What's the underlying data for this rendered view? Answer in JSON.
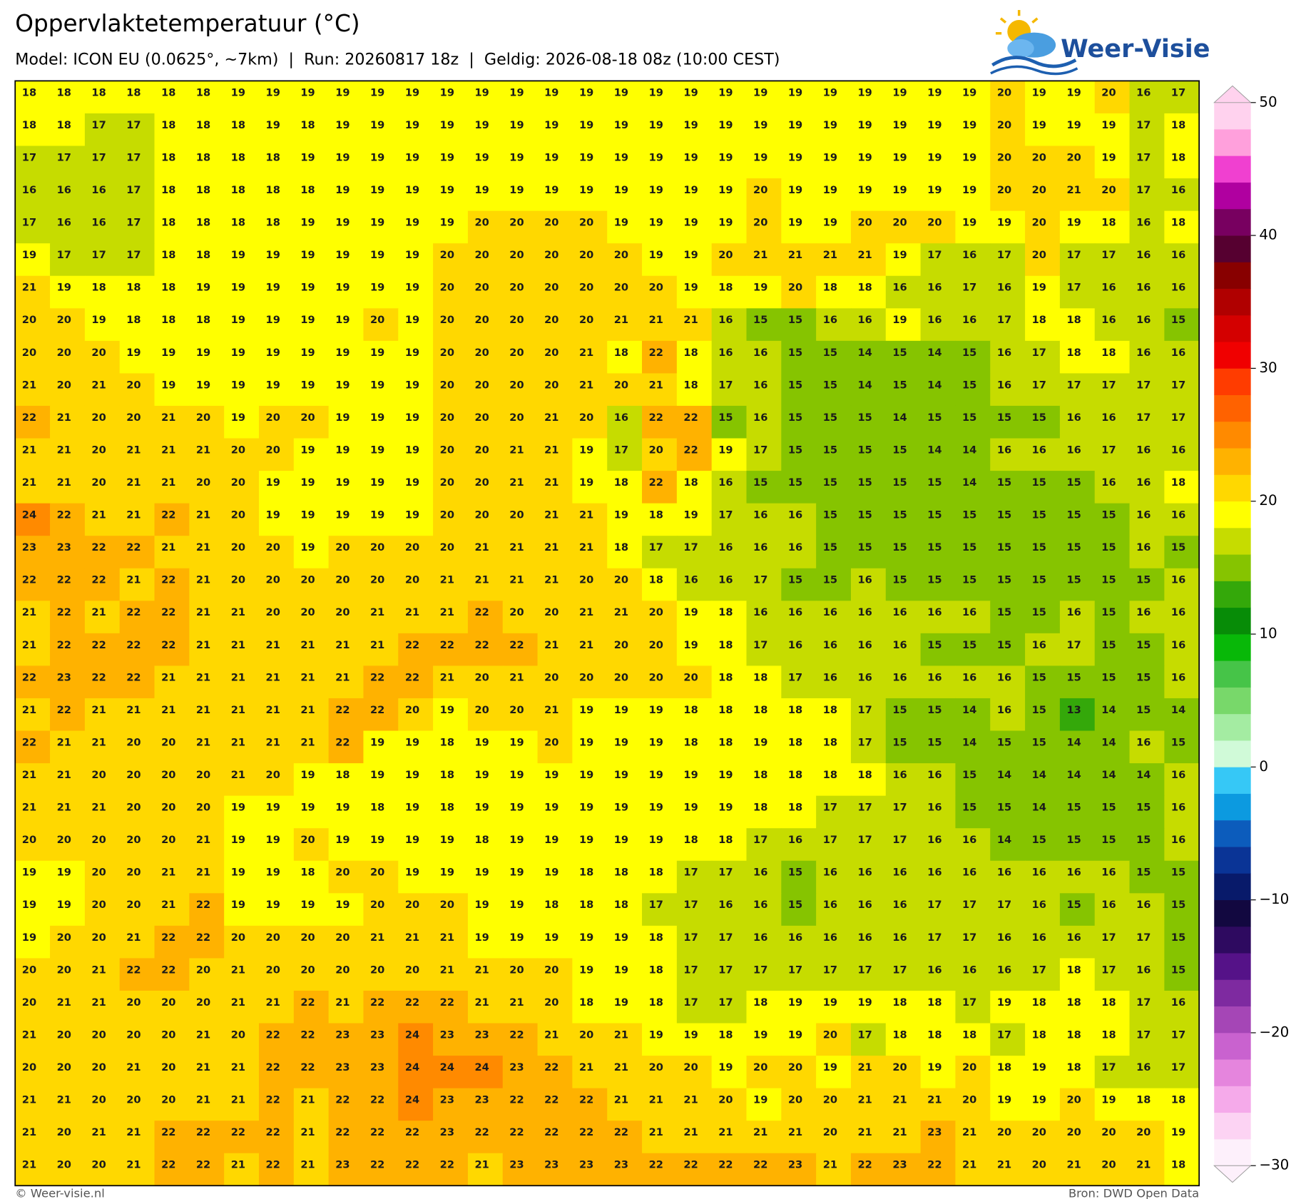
{
  "header": {
    "title": "Oppervlaktetemperatuur (°C)",
    "subtitle": "Model: ICON EU (0.0625°, ~7km)  |  Run: 20260817 18z  |  Geldig: 2026-08-18 08z (10:00 CEST)"
  },
  "logo": {
    "text": "Weer-Visie"
  },
  "map": {
    "values": [
      [
        18,
        18,
        18,
        18,
        18,
        18,
        19,
        19,
        19,
        19,
        19,
        19,
        19,
        19,
        19,
        19,
        19,
        19,
        19,
        19,
        19,
        19,
        19,
        19,
        19,
        19,
        19,
        19,
        20,
        19,
        19,
        20,
        16,
        17
      ],
      [
        18,
        18,
        17,
        17,
        18,
        18,
        18,
        19,
        18,
        19,
        19,
        19,
        19,
        19,
        19,
        19,
        19,
        19,
        19,
        19,
        19,
        19,
        19,
        19,
        19,
        19,
        19,
        19,
        20,
        19,
        19,
        19,
        17,
        18
      ],
      [
        17,
        17,
        17,
        17,
        18,
        18,
        18,
        18,
        19,
        19,
        19,
        19,
        19,
        19,
        19,
        19,
        19,
        19,
        19,
        19,
        19,
        19,
        19,
        19,
        19,
        19,
        19,
        19,
        20,
        20,
        20,
        19,
        17,
        18
      ],
      [
        16,
        16,
        16,
        17,
        18,
        18,
        18,
        18,
        18,
        19,
        19,
        19,
        19,
        19,
        19,
        19,
        19,
        19,
        19,
        19,
        19,
        20,
        19,
        19,
        19,
        19,
        19,
        19,
        20,
        20,
        21,
        20,
        17,
        16
      ],
      [
        17,
        16,
        16,
        17,
        18,
        18,
        18,
        18,
        19,
        19,
        19,
        19,
        19,
        20,
        20,
        20,
        20,
        19,
        19,
        19,
        19,
        20,
        19,
        19,
        20,
        20,
        20,
        19,
        19,
        20,
        19,
        18,
        16,
        18
      ],
      [
        19,
        17,
        17,
        17,
        18,
        18,
        19,
        19,
        19,
        19,
        19,
        19,
        20,
        20,
        20,
        20,
        20,
        20,
        19,
        19,
        20,
        21,
        21,
        21,
        21,
        19,
        17,
        16,
        17,
        20,
        17,
        17,
        16,
        16
      ],
      [
        21,
        19,
        18,
        18,
        18,
        19,
        19,
        19,
        19,
        19,
        19,
        19,
        20,
        20,
        20,
        20,
        20,
        20,
        20,
        19,
        18,
        19,
        20,
        18,
        18,
        16,
        16,
        17,
        16,
        19,
        17,
        16,
        16,
        16
      ],
      [
        20,
        20,
        19,
        18,
        18,
        18,
        19,
        19,
        19,
        19,
        20,
        19,
        20,
        20,
        20,
        20,
        20,
        21,
        21,
        21,
        16,
        15,
        15,
        16,
        16,
        19,
        16,
        16,
        17,
        18,
        18,
        16,
        16,
        15
      ],
      [
        20,
        20,
        20,
        19,
        19,
        19,
        19,
        19,
        19,
        19,
        19,
        19,
        20,
        20,
        20,
        20,
        21,
        18,
        22,
        18,
        16,
        16,
        15,
        15,
        14,
        15,
        14,
        15,
        16,
        17,
        18,
        18,
        16,
        16
      ],
      [
        21,
        20,
        21,
        20,
        19,
        19,
        19,
        19,
        19,
        19,
        19,
        19,
        20,
        20,
        20,
        20,
        21,
        20,
        21,
        18,
        17,
        16,
        15,
        15,
        14,
        15,
        14,
        15,
        16,
        17,
        17,
        17,
        17,
        17
      ],
      [
        22,
        21,
        20,
        20,
        21,
        20,
        19,
        20,
        20,
        19,
        19,
        19,
        20,
        20,
        20,
        21,
        20,
        16,
        22,
        22,
        15,
        16,
        15,
        15,
        15,
        14,
        15,
        15,
        15,
        15,
        16,
        16,
        17,
        17
      ],
      [
        21,
        21,
        20,
        21,
        21,
        21,
        20,
        20,
        19,
        19,
        19,
        19,
        20,
        20,
        21,
        21,
        19,
        17,
        20,
        22,
        19,
        17,
        15,
        15,
        15,
        15,
        14,
        14,
        16,
        16,
        16,
        17,
        16,
        16
      ],
      [
        21,
        21,
        20,
        21,
        21,
        20,
        20,
        19,
        19,
        19,
        19,
        19,
        20,
        20,
        21,
        21,
        19,
        18,
        22,
        18,
        16,
        15,
        15,
        15,
        15,
        15,
        15,
        14,
        15,
        15,
        15,
        16,
        16,
        18
      ],
      [
        24,
        22,
        21,
        21,
        22,
        21,
        20,
        19,
        19,
        19,
        19,
        19,
        20,
        20,
        20,
        21,
        21,
        19,
        18,
        19,
        17,
        16,
        16,
        15,
        15,
        15,
        15,
        15,
        15,
        15,
        15,
        15,
        16,
        16
      ],
      [
        23,
        23,
        22,
        22,
        21,
        21,
        20,
        20,
        19,
        20,
        20,
        20,
        20,
        21,
        21,
        21,
        21,
        18,
        17,
        17,
        16,
        16,
        16,
        15,
        15,
        15,
        15,
        15,
        15,
        15,
        15,
        15,
        16,
        15
      ],
      [
        22,
        22,
        22,
        21,
        22,
        21,
        20,
        20,
        20,
        20,
        20,
        20,
        21,
        21,
        21,
        21,
        20,
        20,
        18,
        16,
        16,
        17,
        15,
        15,
        16,
        15,
        15,
        15,
        15,
        15,
        15,
        15,
        15,
        16
      ],
      [
        21,
        22,
        21,
        22,
        22,
        21,
        21,
        20,
        20,
        20,
        21,
        21,
        21,
        22,
        20,
        20,
        21,
        21,
        20,
        19,
        18,
        16,
        16,
        16,
        16,
        16,
        16,
        16,
        15,
        15,
        16,
        15,
        16,
        16
      ],
      [
        21,
        22,
        22,
        22,
        22,
        21,
        21,
        21,
        21,
        21,
        21,
        22,
        22,
        22,
        22,
        21,
        21,
        20,
        20,
        19,
        18,
        17,
        16,
        16,
        16,
        16,
        15,
        15,
        15,
        16,
        17,
        15,
        15,
        16
      ],
      [
        22,
        23,
        22,
        22,
        21,
        21,
        21,
        21,
        21,
        21,
        22,
        22,
        21,
        20,
        21,
        20,
        20,
        20,
        20,
        20,
        18,
        18,
        17,
        16,
        16,
        16,
        16,
        16,
        16,
        15,
        15,
        15,
        15,
        16
      ],
      [
        21,
        22,
        21,
        21,
        21,
        21,
        21,
        21,
        21,
        22,
        22,
        20,
        19,
        20,
        20,
        21,
        19,
        19,
        19,
        18,
        18,
        18,
        18,
        18,
        17,
        15,
        15,
        14,
        16,
        15,
        13,
        14,
        15,
        14
      ],
      [
        22,
        21,
        21,
        20,
        20,
        21,
        21,
        21,
        21,
        22,
        19,
        19,
        18,
        19,
        19,
        20,
        19,
        19,
        19,
        18,
        18,
        19,
        18,
        18,
        17,
        15,
        15,
        14,
        15,
        15,
        14,
        14,
        16,
        15
      ],
      [
        21,
        21,
        20,
        20,
        20,
        20,
        21,
        20,
        19,
        18,
        19,
        19,
        18,
        19,
        19,
        19,
        19,
        19,
        19,
        19,
        19,
        18,
        18,
        18,
        18,
        16,
        16,
        15,
        14,
        14,
        14,
        14,
        14,
        16
      ],
      [
        21,
        21,
        21,
        20,
        20,
        20,
        19,
        19,
        19,
        19,
        18,
        19,
        18,
        19,
        19,
        19,
        19,
        19,
        19,
        19,
        19,
        18,
        18,
        17,
        17,
        17,
        16,
        15,
        15,
        14,
        15,
        15,
        15,
        16
      ],
      [
        20,
        20,
        20,
        20,
        20,
        21,
        19,
        19,
        20,
        19,
        19,
        19,
        19,
        18,
        19,
        19,
        19,
        19,
        19,
        18,
        18,
        17,
        16,
        17,
        17,
        17,
        16,
        16,
        14,
        15,
        15,
        15,
        15,
        16
      ],
      [
        19,
        19,
        20,
        20,
        21,
        21,
        19,
        19,
        18,
        20,
        20,
        19,
        19,
        19,
        19,
        19,
        18,
        18,
        18,
        17,
        17,
        16,
        15,
        16,
        16,
        16,
        16,
        16,
        16,
        16,
        16,
        16,
        15,
        15
      ],
      [
        19,
        19,
        20,
        20,
        21,
        22,
        19,
        19,
        19,
        19,
        20,
        20,
        20,
        19,
        19,
        18,
        18,
        18,
        17,
        17,
        16,
        16,
        15,
        16,
        16,
        16,
        17,
        17,
        17,
        16,
        15,
        16,
        16,
        15
      ],
      [
        19,
        20,
        20,
        21,
        22,
        22,
        20,
        20,
        20,
        20,
        21,
        21,
        21,
        19,
        19,
        19,
        19,
        19,
        18,
        17,
        17,
        16,
        16,
        16,
        16,
        16,
        17,
        17,
        16,
        16,
        16,
        17,
        17,
        15
      ],
      [
        20,
        20,
        21,
        22,
        22,
        20,
        21,
        20,
        20,
        20,
        20,
        20,
        21,
        21,
        20,
        20,
        19,
        19,
        18,
        17,
        17,
        17,
        17,
        17,
        17,
        17,
        16,
        16,
        16,
        17,
        18,
        17,
        16,
        15
      ],
      [
        20,
        21,
        21,
        20,
        20,
        20,
        21,
        21,
        22,
        21,
        22,
        22,
        22,
        21,
        21,
        20,
        18,
        19,
        18,
        17,
        17,
        18,
        19,
        19,
        19,
        18,
        18,
        17,
        19,
        18,
        18,
        18,
        17,
        16
      ],
      [
        21,
        20,
        20,
        20,
        20,
        21,
        20,
        22,
        22,
        23,
        23,
        24,
        23,
        23,
        22,
        21,
        20,
        21,
        19,
        19,
        18,
        19,
        19,
        20,
        17,
        18,
        18,
        18,
        17,
        18,
        18,
        18,
        17,
        17
      ],
      [
        20,
        20,
        20,
        21,
        20,
        21,
        21,
        22,
        22,
        23,
        23,
        24,
        24,
        24,
        23,
        22,
        21,
        21,
        20,
        20,
        19,
        20,
        20,
        19,
        21,
        20,
        19,
        20,
        18,
        19,
        18,
        17,
        16,
        17
      ],
      [
        21,
        21,
        20,
        20,
        20,
        21,
        21,
        22,
        21,
        22,
        22,
        24,
        23,
        23,
        22,
        22,
        22,
        21,
        21,
        21,
        20,
        19,
        20,
        20,
        21,
        21,
        21,
        20,
        19,
        19,
        20,
        19,
        18,
        18
      ],
      [
        21,
        20,
        21,
        21,
        22,
        22,
        22,
        22,
        21,
        22,
        22,
        22,
        23,
        22,
        22,
        22,
        22,
        22,
        21,
        21,
        21,
        21,
        21,
        20,
        21,
        21,
        23,
        21,
        20,
        20,
        20,
        20,
        20,
        19
      ],
      [
        21,
        20,
        20,
        21,
        22,
        22,
        21,
        22,
        21,
        23,
        22,
        22,
        22,
        21,
        23,
        23,
        23,
        23,
        22,
        22,
        22,
        22,
        23,
        21,
        22,
        23,
        22,
        21,
        21,
        20,
        21,
        20,
        21,
        18
      ]
    ]
  },
  "colorbar": {
    "clim": [
      -30,
      50
    ],
    "ticks": [
      50,
      40,
      30,
      20,
      10,
      0,
      {
        "value": -10,
        "label": "−10"
      },
      {
        "value": -20,
        "label": "−20"
      },
      {
        "value": -30,
        "label": "−30"
      }
    ],
    "colors": [
      "#fdf0fb",
      "#fcd3f3",
      "#f5aaea",
      "#e585dd",
      "#c962cf",
      "#a546b6",
      "#7e2aa0",
      "#551288",
      "#2e0a60",
      "#120840",
      "#081a6a",
      "#0a3496",
      "#0c5cbc",
      "#0c9ae0",
      "#36c8f6",
      "#d0fad8",
      "#a4eca2",
      "#78d86a",
      "#46c448",
      "#08b808",
      "#078c07",
      "#34a80a",
      "#86c400",
      "#c6dc00",
      "#ffff00",
      "#ffd800",
      "#ffb200",
      "#ff8a00",
      "#ff6200",
      "#ff3c00",
      "#f00000",
      "#d40000",
      "#b00000",
      "#880000",
      "#560030",
      "#780060",
      "#b000a0",
      "#f040d0",
      "#ffa0dc",
      "#ffd2ee"
    ]
  },
  "footer": {
    "left": "© Weer-visie.nl",
    "right": "Bron: DWD Open Data"
  }
}
